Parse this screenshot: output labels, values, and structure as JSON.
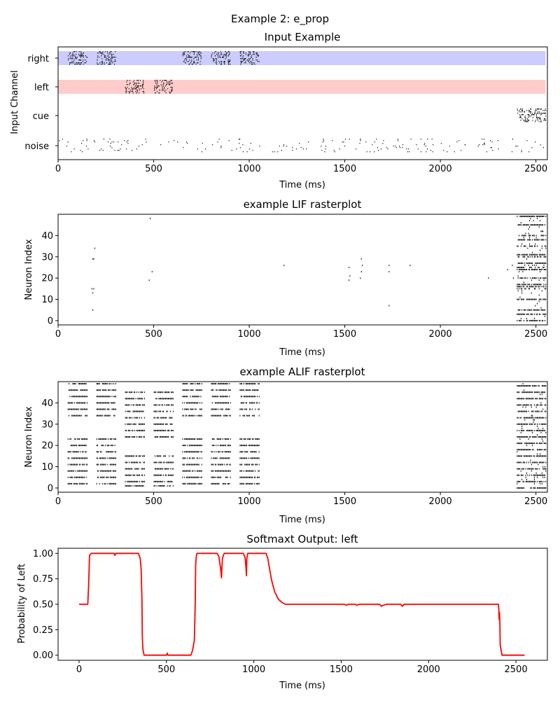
{
  "figure_title": "Example 2: e_prop",
  "chart_data": [
    {
      "type": "raster",
      "title": "Input Example",
      "xlabel": "Time (ms)",
      "ylabel": "Input Channel",
      "xlim": [
        0,
        2560
      ],
      "xticks": [
        0,
        500,
        1000,
        1500,
        2000,
        2500
      ],
      "channels": [
        "right",
        "left",
        "cue",
        "noise"
      ],
      "bands": [
        {
          "channel": "right",
          "x_range": [
            0,
            2550
          ],
          "color": "#ccccff"
        },
        {
          "channel": "left",
          "x_range": [
            0,
            2550
          ],
          "color": "#ffcccc"
        }
      ],
      "spike_windows": [
        {
          "channel": "right",
          "ranges": [
            [
              50,
              150
            ],
            [
              200,
              300
            ],
            [
              650,
              750
            ],
            [
              800,
              900
            ],
            [
              950,
              1050
            ]
          ]
        },
        {
          "channel": "left",
          "ranges": [
            [
              350,
              450
            ],
            [
              500,
              600
            ]
          ]
        },
        {
          "channel": "cue",
          "ranges": [
            [
              2400,
              2550
            ]
          ]
        },
        {
          "channel": "noise",
          "ranges": [
            [
              0,
              2550
            ]
          ]
        }
      ]
    },
    {
      "type": "raster",
      "title": "example LIF rasterplot",
      "xlabel": "Time (ms)",
      "ylabel": "Neuron Index",
      "xlim": [
        0,
        2560
      ],
      "ylim": [
        -2,
        50
      ],
      "xticks": [
        0,
        500,
        1000,
        1500,
        2000,
        2500
      ],
      "yticks": [
        0,
        10,
        20,
        30,
        40
      ],
      "dense_window": [
        2400,
        2550
      ],
      "sparse_spikes": [
        [
          180,
          5
        ],
        [
          180,
          13
        ],
        [
          175,
          15
        ],
        [
          185,
          15
        ],
        [
          180,
          29
        ],
        [
          185,
          29
        ],
        [
          190,
          34
        ],
        [
          475,
          19
        ],
        [
          480,
          48
        ],
        [
          490,
          23
        ],
        [
          1180,
          26
        ],
        [
          1520,
          19
        ],
        [
          1525,
          21
        ],
        [
          1520,
          25
        ],
        [
          1580,
          20
        ],
        [
          1585,
          23
        ],
        [
          1590,
          26
        ],
        [
          1585,
          29
        ],
        [
          1730,
          7
        ],
        [
          1730,
          23
        ],
        [
          1730,
          26
        ],
        [
          1840,
          26
        ],
        [
          2250,
          20
        ],
        [
          2350,
          24
        ],
        [
          2375,
          26
        ],
        [
          2380,
          20
        ]
      ]
    },
    {
      "type": "raster",
      "title": "example ALIF rasterplot",
      "xlabel": "Time (ms)",
      "ylabel": "Neuron Index",
      "xlim": [
        0,
        2560
      ],
      "ylim": [
        -2,
        50
      ],
      "xticks": [
        0,
        500,
        1000,
        1500,
        2000,
        2500
      ],
      "yticks": [
        0,
        10,
        20,
        30,
        40
      ],
      "active_windows": [
        [
          50,
          150
        ],
        [
          200,
          300
        ],
        [
          350,
          450
        ],
        [
          500,
          600
        ],
        [
          650,
          750
        ],
        [
          800,
          900
        ],
        [
          950,
          1050
        ],
        [
          2400,
          2550
        ]
      ]
    },
    {
      "type": "line",
      "title": "Softmaxt Output: left",
      "xlabel": "Time (ms)",
      "ylabel": "Probability of Left",
      "xlim": [
        -120,
        2680
      ],
      "ylim": [
        -0.05,
        1.05
      ],
      "xticks": [
        0,
        500,
        1000,
        1500,
        2000,
        2500
      ],
      "yticks": [
        "0.00",
        "0.25",
        "0.50",
        "0.75",
        "1.00"
      ],
      "series": [
        {
          "color": "#ff0000",
          "x": [
            0,
            50,
            55,
            60,
            70,
            200,
            205,
            210,
            340,
            350,
            355,
            360,
            362,
            364,
            366,
            370,
            372,
            375,
            500,
            505,
            508,
            512,
            640,
            650,
            660,
            665,
            667,
            670,
            672,
            675,
            680,
            790,
            800,
            810,
            815,
            820,
            830,
            940,
            950,
            955,
            958,
            960,
            965,
            975,
            1070,
            1080,
            1090,
            1100,
            1110,
            1120,
            1140,
            1160,
            1180,
            1200,
            1520,
            1530,
            1540,
            1580,
            1590,
            1600,
            1720,
            1730,
            1740,
            1760,
            1840,
            1850,
            1860,
            2400,
            2402,
            2404,
            2406,
            2408,
            2410,
            2420,
            2550
          ],
          "values": [
            0.5,
            0.5,
            0.7,
            0.98,
            1.0,
            1.0,
            0.98,
            1.0,
            1.0,
            0.95,
            0.85,
            0.55,
            0.2,
            0.1,
            0.05,
            0.02,
            0.0,
            0.0,
            0.0,
            0.02,
            0.0,
            0.0,
            0.0,
            0.05,
            0.15,
            0.55,
            0.88,
            0.95,
            0.98,
            1.0,
            1.0,
            1.0,
            0.97,
            0.85,
            0.76,
            0.95,
            1.0,
            1.0,
            0.96,
            0.86,
            0.78,
            0.95,
            1.0,
            1.0,
            1.0,
            0.95,
            0.85,
            0.75,
            0.68,
            0.62,
            0.55,
            0.52,
            0.5,
            0.5,
            0.5,
            0.49,
            0.5,
            0.5,
            0.49,
            0.5,
            0.5,
            0.48,
            0.49,
            0.5,
            0.5,
            0.48,
            0.5,
            0.5,
            0.45,
            0.35,
            0.42,
            0.32,
            0.1,
            0.0,
            0.0
          ]
        }
      ]
    }
  ]
}
